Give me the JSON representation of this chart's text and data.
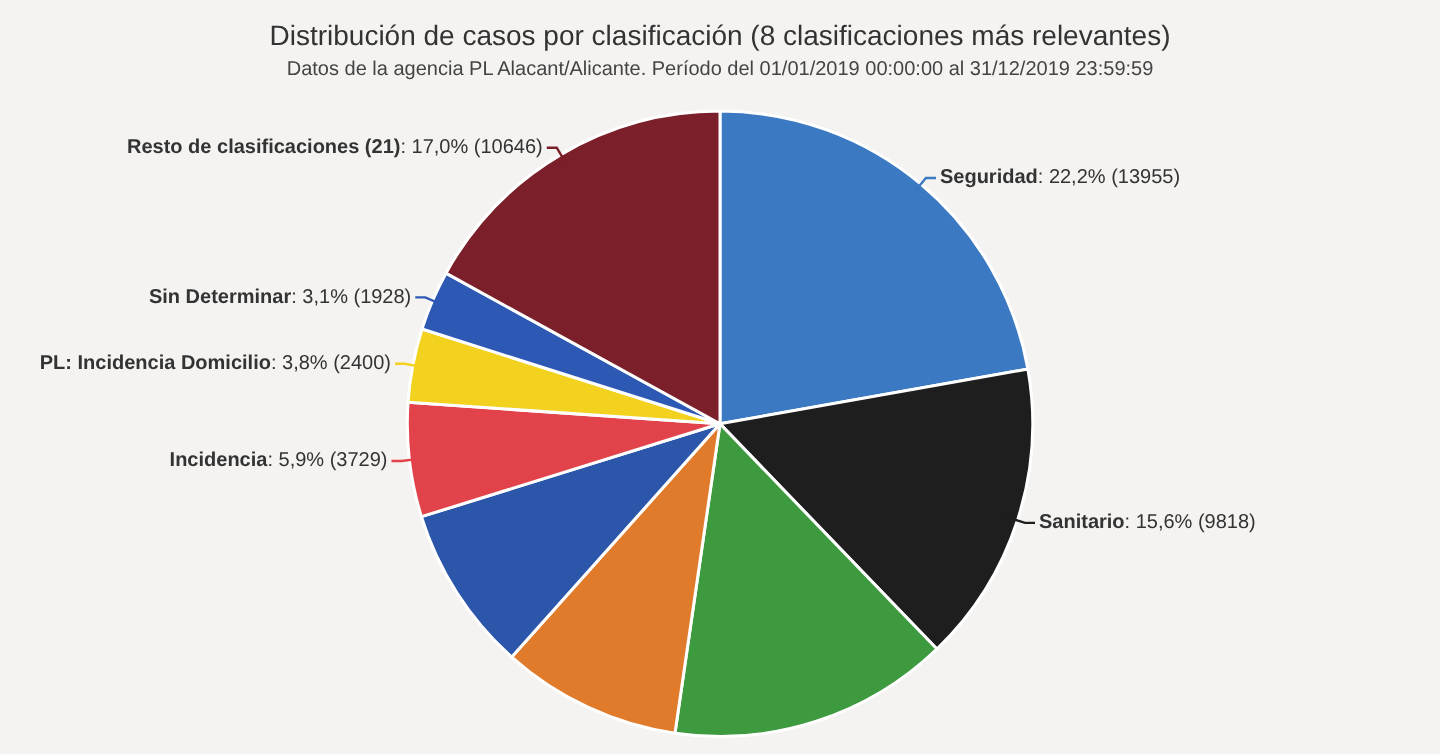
{
  "chart_data": {
    "type": "pie",
    "title": "Distribución de casos por clasificación (8 clasificaciones más relevantes)",
    "subtitle": "Datos de la agencia PL Alacant/Alicante. Período del 01/01/2019 00:00:00 al 31/12/2019 23:59:59",
    "categories": [
      "Seguridad",
      "Sanitario",
      null,
      null,
      null,
      "Incidencia",
      "PL: Incidencia Domicilio",
      "Sin Determinar",
      "Resto de clasificaciones (21)"
    ],
    "values": [
      22.2,
      15.6,
      14.5,
      9.3,
      8.6,
      5.9,
      3.8,
      3.1,
      17.0
    ],
    "value_labels": [
      ": 22,2% (13955)",
      ": 15,6% (9818)",
      null,
      null,
      null,
      ": 5,9% (3729)",
      ": 3,8% (2400)",
      ": 3,1% (1928)",
      ": 17,0% (10646)"
    ],
    "colors": [
      "#3b79c2",
      "#1e1e1e",
      "#3d9a3e",
      "#e07b2c",
      "#2b56aa",
      "#e2434a",
      "#f2d11f",
      "#2d58b4",
      "#7b1f2a"
    ],
    "legend": false
  }
}
